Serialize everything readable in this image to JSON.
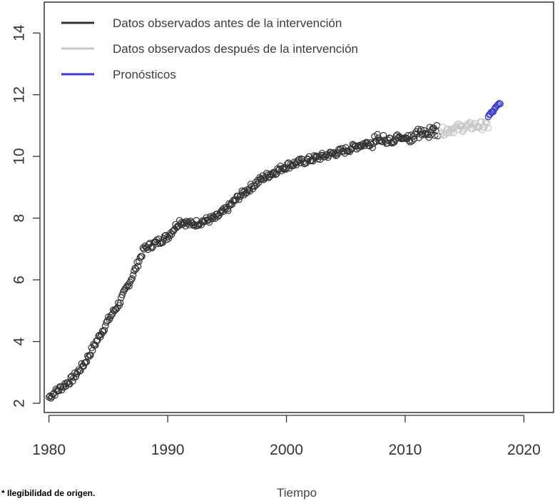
{
  "chart_data": {
    "type": "scatter",
    "title": "",
    "xlabel": "Tiempo",
    "ylabel": "",
    "xlim": [
      1979.6,
      2022.5
    ],
    "ylim": [
      1.7,
      15.0
    ],
    "x_ticks": [
      1980,
      1990,
      2000,
      2010,
      2020
    ],
    "y_ticks": [
      2,
      4,
      6,
      8,
      10,
      12,
      14
    ],
    "grid": false,
    "legend_position": "top-left",
    "legend": [
      {
        "label": "Datos observados antes de la intervención",
        "color": "#333333"
      },
      {
        "label": "Datos observados después de la intervención",
        "color": "#c8c8c8"
      },
      {
        "label": "Pronósticos",
        "color": "#3a3acc"
      }
    ],
    "series": [
      {
        "name": "Datos observados antes de la intervención",
        "color": "#333333",
        "trend_points": [
          [
            1980,
            2.2
          ],
          [
            1981,
            2.5
          ],
          [
            1982,
            2.8
          ],
          [
            1983,
            3.3
          ],
          [
            1984,
            4.0
          ],
          [
            1985,
            4.7
          ],
          [
            1986,
            5.3
          ],
          [
            1987,
            6.1
          ],
          [
            1988,
            7.0
          ],
          [
            1989,
            7.2
          ],
          [
            1990,
            7.4
          ],
          [
            1991,
            7.9
          ],
          [
            1992,
            7.8
          ],
          [
            1993,
            7.9
          ],
          [
            1994,
            8.0
          ],
          [
            1995,
            8.3
          ],
          [
            1996,
            8.7
          ],
          [
            1997,
            9.0
          ],
          [
            1998,
            9.3
          ],
          [
            1999,
            9.5
          ],
          [
            2000,
            9.7
          ],
          [
            2001,
            9.8
          ],
          [
            2002,
            9.9
          ],
          [
            2003,
            10.0
          ],
          [
            2004,
            10.1
          ],
          [
            2005,
            10.2
          ],
          [
            2006,
            10.35
          ],
          [
            2007,
            10.45
          ],
          [
            2008,
            10.55
          ],
          [
            2009,
            10.6
          ],
          [
            2010,
            10.6
          ],
          [
            2011,
            10.7
          ],
          [
            2012,
            10.8
          ],
          [
            2012.8,
            10.9
          ]
        ]
      },
      {
        "name": "Datos observados después de la intervención",
        "color": "#c8c8c8",
        "trend_points": [
          [
            2013,
            10.8
          ],
          [
            2014,
            10.9
          ],
          [
            2015,
            10.95
          ],
          [
            2016,
            11.0
          ],
          [
            2017,
            11.0
          ]
        ]
      },
      {
        "name": "Pronósticos",
        "color": "#3a3acc",
        "trend_points": [
          [
            2017,
            11.3
          ],
          [
            2017.5,
            11.5
          ],
          [
            2018,
            11.75
          ]
        ]
      }
    ]
  },
  "note": "* Ilegibilidad de origen."
}
